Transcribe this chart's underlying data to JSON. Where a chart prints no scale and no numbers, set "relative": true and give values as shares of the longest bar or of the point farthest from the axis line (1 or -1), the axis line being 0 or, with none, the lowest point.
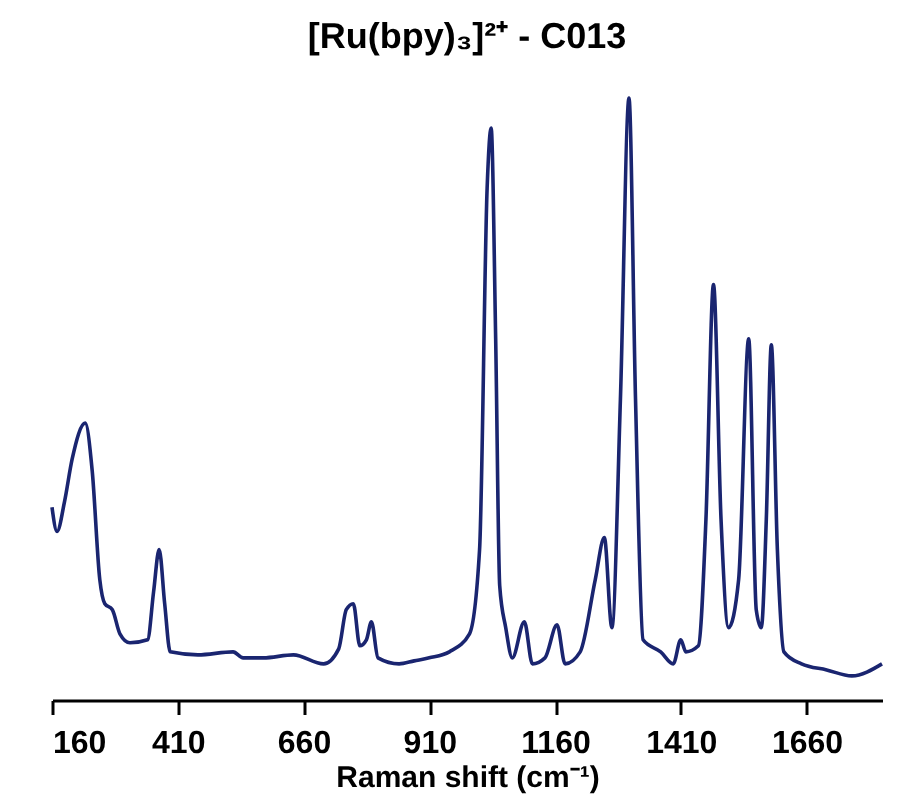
{
  "chart_data": {
    "type": "line",
    "title": "[Ru(bpy)₃]²⁺ - C013",
    "xlabel": "Raman shift (cm⁻¹)",
    "relative": true,
    "x": [
      160,
      170,
      185,
      200,
      226,
      240,
      255,
      265,
      280,
      295,
      315,
      350,
      362,
      373,
      384,
      395,
      450,
      520,
      540,
      580,
      640,
      700,
      730,
      745,
      759,
      772,
      785,
      795,
      808,
      850,
      880,
      910,
      950,
      990,
      1010,
      1025,
      1033,
      1042,
      1050,
      1062,
      1075,
      1099,
      1115,
      1140,
      1164,
      1180,
      1210,
      1240,
      1258,
      1273,
      1290,
      1307,
      1320,
      1335,
      1370,
      1395,
      1410,
      1420,
      1445,
      1460,
      1475,
      1490,
      1505,
      1525,
      1545,
      1560,
      1570,
      1580,
      1590,
      1602,
      1615,
      1650,
      1700,
      1750,
      1810
    ],
    "series": [
      {
        "color": "#1a2570",
        "values": [
          0.32,
          0.28,
          0.33,
          0.4,
          0.46,
          0.38,
          0.2,
          0.16,
          0.15,
          0.11,
          0.095,
          0.1,
          0.18,
          0.25,
          0.16,
          0.08,
          0.075,
          0.08,
          0.07,
          0.07,
          0.075,
          0.06,
          0.085,
          0.15,
          0.16,
          0.09,
          0.1,
          0.13,
          0.07,
          0.06,
          0.065,
          0.07,
          0.08,
          0.11,
          0.25,
          0.85,
          0.95,
          0.6,
          0.19,
          0.12,
          0.07,
          0.13,
          0.06,
          0.07,
          0.125,
          0.06,
          0.08,
          0.2,
          0.27,
          0.12,
          0.5,
          1.0,
          0.5,
          0.1,
          0.08,
          0.06,
          0.1,
          0.08,
          0.09,
          0.3,
          0.69,
          0.3,
          0.12,
          0.2,
          0.6,
          0.15,
          0.12,
          0.3,
          0.59,
          0.25,
          0.08,
          0.06,
          0.05,
          0.04,
          0.06
        ]
      }
    ],
    "xlim": [
      160,
      1810
    ],
    "xticks": [
      160,
      410,
      660,
      910,
      1160,
      1410,
      1660
    ],
    "grid": false,
    "legend": false,
    "marker": "none",
    "line_style": "solid"
  }
}
